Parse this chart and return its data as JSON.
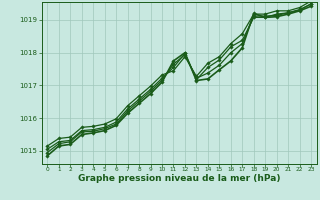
{
  "background_color": "#c8e8e0",
  "grid_color": "#a0c8bc",
  "line_color": "#1a5c1a",
  "marker_color": "#1a5c1a",
  "xlabel": "Graphe pression niveau de la mer (hPa)",
  "xlabel_fontsize": 6.5,
  "xlim": [
    -0.5,
    23.5
  ],
  "ylim": [
    1014.6,
    1019.55
  ],
  "yticks": [
    1015,
    1016,
    1017,
    1018,
    1019
  ],
  "xticks": [
    0,
    1,
    2,
    3,
    4,
    5,
    6,
    7,
    8,
    9,
    10,
    11,
    12,
    13,
    14,
    15,
    16,
    17,
    18,
    19,
    20,
    21,
    22,
    23
  ],
  "series": [
    [
      1014.85,
      1015.15,
      1015.2,
      1015.5,
      1015.55,
      1015.62,
      1015.78,
      1016.15,
      1016.45,
      1016.75,
      1017.1,
      1017.75,
      1018.0,
      1017.15,
      1017.2,
      1017.48,
      1017.75,
      1018.15,
      1019.2,
      1019.08,
      1019.1,
      1019.18,
      1019.28,
      1019.42
    ],
    [
      1015.05,
      1015.28,
      1015.32,
      1015.62,
      1015.65,
      1015.72,
      1015.88,
      1016.28,
      1016.58,
      1016.88,
      1017.22,
      1017.55,
      1017.98,
      1017.18,
      1017.55,
      1017.78,
      1018.18,
      1018.38,
      1019.08,
      1019.08,
      1019.18,
      1019.22,
      1019.32,
      1019.48
    ],
    [
      1015.15,
      1015.38,
      1015.42,
      1015.72,
      1015.75,
      1015.82,
      1015.98,
      1016.38,
      1016.68,
      1016.98,
      1017.32,
      1017.45,
      1017.88,
      1017.28,
      1017.68,
      1017.88,
      1018.28,
      1018.58,
      1019.18,
      1019.18,
      1019.28,
      1019.28,
      1019.38,
      1019.58
    ],
    [
      1014.95,
      1015.22,
      1015.28,
      1015.58,
      1015.6,
      1015.68,
      1015.82,
      1016.22,
      1016.52,
      1016.82,
      1017.16,
      1017.65,
      1017.94,
      1017.22,
      1017.38,
      1017.62,
      1018.0,
      1018.28,
      1019.12,
      1019.12,
      1019.14,
      1019.22,
      1019.3,
      1019.5
    ]
  ]
}
